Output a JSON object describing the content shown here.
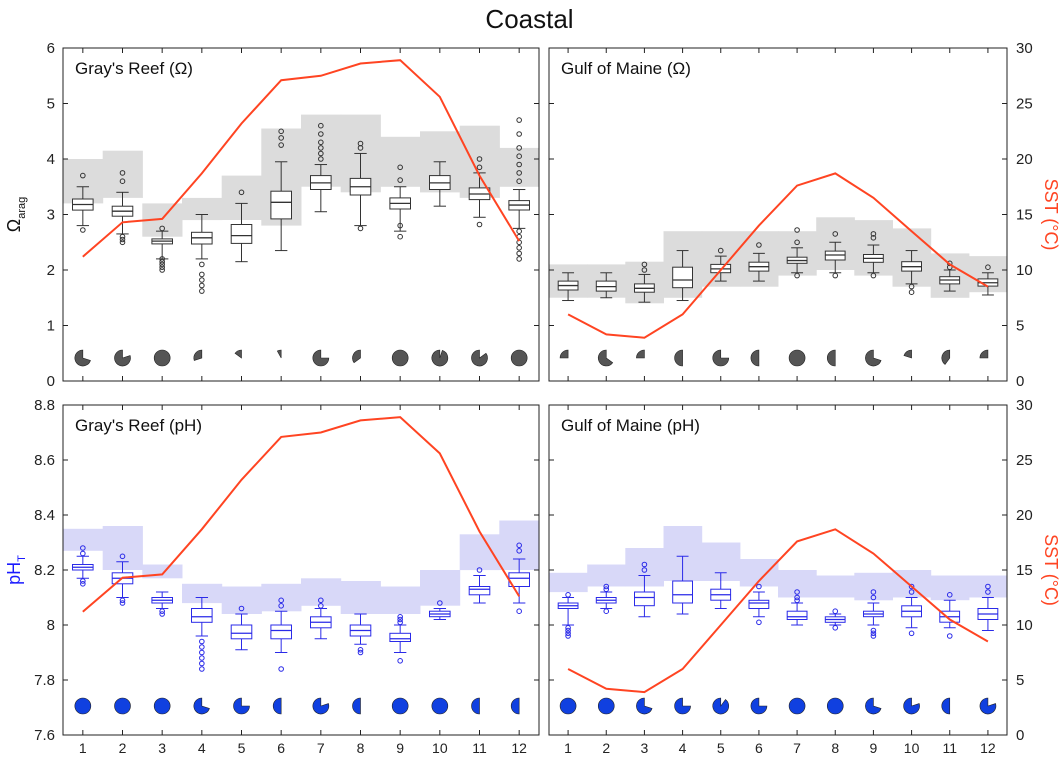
{
  "figure": {
    "title": "Coastal",
    "colors": {
      "sst_line": "#ff4422",
      "omega_box": "#333333",
      "omega_band": "#dcdcdc",
      "ph_box": "#2a2ae8",
      "ph_band": "#d8d8f8",
      "omega_pie": "#555555",
      "ph_pie": "#1040e0",
      "ylabel_omega": "#111111",
      "ylabel_ph": "#1a1aff",
      "ylabel_sst": "#ff4422"
    },
    "left_ylabels": {
      "omega": "Ωarag",
      "ph": "pHT"
    },
    "right_ylabel": "SST (°C)"
  },
  "chart_data": [
    {
      "type": "box",
      "panel": "top-left",
      "title": "Gray's Reef (Ω)",
      "ylabel": "Ωarag",
      "yright_label": "",
      "x": [
        1,
        2,
        3,
        4,
        5,
        6,
        7,
        8,
        9,
        10,
        11,
        12
      ],
      "xticks": [
        1,
        2,
        3,
        4,
        5,
        6,
        7,
        8,
        9,
        10,
        11,
        12
      ],
      "ylim": [
        0,
        6
      ],
      "yticks": [
        0,
        1,
        2,
        3,
        4,
        5,
        6
      ],
      "yright_lim": [
        0,
        30
      ],
      "yright_ticks": [
        0,
        5,
        10,
        15,
        20,
        25,
        30
      ],
      "band": [
        [
          3.2,
          4.0
        ],
        [
          3.3,
          4.15
        ],
        [
          2.6,
          3.2
        ],
        [
          2.9,
          3.3
        ],
        [
          2.9,
          3.7
        ],
        [
          2.8,
          4.55
        ],
        [
          3.5,
          4.8
        ],
        [
          3.4,
          4.8
        ],
        [
          3.5,
          4.4
        ],
        [
          3.4,
          4.5
        ],
        [
          3.3,
          4.6
        ],
        [
          3.5,
          4.2
        ]
      ],
      "boxes": [
        {
          "min": 2.8,
          "q1": 3.08,
          "med": 3.18,
          "q3": 3.28,
          "max": 3.5,
          "outliers": [
            2.72,
            3.7
          ]
        },
        {
          "min": 2.65,
          "q1": 2.97,
          "med": 3.06,
          "q3": 3.15,
          "max": 3.4,
          "outliers": [
            2.5,
            2.55,
            2.6,
            3.6,
            3.75
          ]
        },
        {
          "min": 2.2,
          "q1": 2.47,
          "med": 2.52,
          "q3": 2.56,
          "max": 2.7,
          "outliers": [
            2.0,
            2.05,
            2.1,
            2.15,
            2.2,
            2.75
          ]
        },
        {
          "min": 2.2,
          "q1": 2.47,
          "med": 2.58,
          "q3": 2.68,
          "max": 3.0,
          "outliers": [
            1.62,
            1.72,
            1.82,
            1.92,
            2.1
          ]
        },
        {
          "min": 2.15,
          "q1": 2.48,
          "med": 2.62,
          "q3": 2.82,
          "max": 3.2,
          "outliers": [
            3.4
          ]
        },
        {
          "min": 2.35,
          "q1": 2.92,
          "med": 3.22,
          "q3": 3.42,
          "max": 3.95,
          "outliers": [
            4.25,
            4.38,
            4.5
          ]
        },
        {
          "min": 3.05,
          "q1": 3.45,
          "med": 3.57,
          "q3": 3.7,
          "max": 3.9,
          "outliers": [
            4.0,
            4.1,
            4.2,
            4.3,
            4.45,
            4.6
          ]
        },
        {
          "min": 2.8,
          "q1": 3.35,
          "med": 3.5,
          "q3": 3.65,
          "max": 4.1,
          "outliers": [
            2.75,
            4.2,
            4.28
          ]
        },
        {
          "min": 2.7,
          "q1": 3.1,
          "med": 3.2,
          "q3": 3.3,
          "max": 3.5,
          "outliers": [
            2.6,
            2.8,
            3.62,
            3.85
          ]
        },
        {
          "min": 3.15,
          "q1": 3.45,
          "med": 3.57,
          "q3": 3.7,
          "max": 3.95,
          "outliers": []
        },
        {
          "min": 2.95,
          "q1": 3.27,
          "med": 3.37,
          "q3": 3.48,
          "max": 3.75,
          "outliers": [
            2.82,
            3.85,
            4.0
          ]
        },
        {
          "min": 2.75,
          "q1": 3.08,
          "med": 3.17,
          "q3": 3.25,
          "max": 3.45,
          "outliers": [
            2.2,
            2.3,
            2.4,
            2.5,
            2.6,
            2.7,
            3.6,
            3.75,
            3.9,
            4.05,
            4.2,
            4.45,
            4.7
          ]
        }
      ],
      "sst": [
        11.2,
        14.3,
        14.6,
        18.7,
        23.2,
        27.1,
        27.5,
        28.6,
        28.9,
        25.6,
        18.5,
        12.6
      ],
      "pie_fractions": [
        0.7,
        0.8,
        1.0,
        0.3,
        0.15,
        0.08,
        0.75,
        0.35,
        1.0,
        0.95,
        0.85,
        1.0
      ]
    },
    {
      "type": "box",
      "panel": "top-right",
      "title": "Gulf of Maine (Ω)",
      "ylabel": "",
      "yright_label": "SST (°C)",
      "x": [
        1,
        2,
        3,
        4,
        5,
        6,
        7,
        8,
        9,
        10,
        11,
        12
      ],
      "xticks": [
        1,
        2,
        3,
        4,
        5,
        6,
        7,
        8,
        9,
        10,
        11,
        12
      ],
      "ylim": [
        0,
        6
      ],
      "yticks": [
        0,
        1,
        2,
        3,
        4,
        5,
        6
      ],
      "yright_lim": [
        0,
        30
      ],
      "yright_ticks": [
        0,
        5,
        10,
        15,
        20,
        25,
        30
      ],
      "band": [
        [
          1.5,
          2.1
        ],
        [
          1.5,
          2.1
        ],
        [
          1.4,
          2.15
        ],
        [
          1.5,
          2.7
        ],
        [
          1.7,
          2.7
        ],
        [
          1.7,
          2.7
        ],
        [
          1.9,
          2.7
        ],
        [
          2.0,
          2.95
        ],
        [
          1.9,
          2.9
        ],
        [
          1.7,
          2.75
        ],
        [
          1.5,
          2.3
        ],
        [
          1.6,
          2.25
        ]
      ],
      "boxes": [
        {
          "min": 1.45,
          "q1": 1.64,
          "med": 1.72,
          "q3": 1.8,
          "max": 1.95,
          "outliers": []
        },
        {
          "min": 1.5,
          "q1": 1.62,
          "med": 1.7,
          "q3": 1.8,
          "max": 1.95,
          "outliers": []
        },
        {
          "min": 1.42,
          "q1": 1.6,
          "med": 1.67,
          "q3": 1.75,
          "max": 1.92,
          "outliers": [
            2.0,
            2.1
          ]
        },
        {
          "min": 1.45,
          "q1": 1.68,
          "med": 1.82,
          "q3": 2.05,
          "max": 2.35,
          "outliers": []
        },
        {
          "min": 1.8,
          "q1": 1.95,
          "med": 2.02,
          "q3": 2.1,
          "max": 2.25,
          "outliers": [
            2.35
          ]
        },
        {
          "min": 1.8,
          "q1": 1.98,
          "med": 2.06,
          "q3": 2.14,
          "max": 2.3,
          "outliers": [
            2.45
          ]
        },
        {
          "min": 1.95,
          "q1": 2.12,
          "med": 2.17,
          "q3": 2.23,
          "max": 2.4,
          "outliers": [
            1.9,
            2.5,
            2.72
          ]
        },
        {
          "min": 1.95,
          "q1": 2.18,
          "med": 2.27,
          "q3": 2.34,
          "max": 2.5,
          "outliers": [
            1.9,
            2.65
          ]
        },
        {
          "min": 1.95,
          "q1": 2.14,
          "med": 2.21,
          "q3": 2.28,
          "max": 2.45,
          "outliers": [
            1.9,
            2.58,
            2.65
          ]
        },
        {
          "min": 1.75,
          "q1": 1.98,
          "med": 2.06,
          "q3": 2.15,
          "max": 2.35,
          "outliers": [
            1.6,
            1.7
          ]
        },
        {
          "min": 1.62,
          "q1": 1.75,
          "med": 1.82,
          "q3": 1.88,
          "max": 2.0,
          "outliers": [
            2.05,
            2.12
          ]
        },
        {
          "min": 1.55,
          "q1": 1.71,
          "med": 1.77,
          "q3": 1.84,
          "max": 1.95,
          "outliers": [
            2.05
          ]
        }
      ],
      "sst": [
        6.0,
        4.2,
        3.9,
        6.0,
        10.0,
        14.0,
        17.6,
        18.7,
        16.5,
        13.5,
        10.5,
        8.5
      ],
      "pie_fractions": [
        0.25,
        0.65,
        0.25,
        0.5,
        0.75,
        0.5,
        1.0,
        0.5,
        0.7,
        0.2,
        0.4,
        0.25
      ]
    },
    {
      "type": "box",
      "panel": "bottom-left",
      "title": "Gray's Reef (pH)",
      "ylabel": "pHT",
      "yright_label": "",
      "x": [
        1,
        2,
        3,
        4,
        5,
        6,
        7,
        8,
        9,
        10,
        11,
        12
      ],
      "xticks": [
        1,
        2,
        3,
        4,
        5,
        6,
        7,
        8,
        9,
        10,
        11,
        12
      ],
      "ylim": [
        7.6,
        8.8
      ],
      "yticks": [
        7.6,
        7.8,
        8,
        8.2,
        8.4,
        8.6,
        8.8
      ],
      "yright_lim": [
        0,
        30
      ],
      "yright_ticks": [
        0,
        5,
        10,
        15,
        20,
        25,
        30
      ],
      "band": [
        [
          8.27,
          8.35
        ],
        [
          8.2,
          8.36
        ],
        [
          8.17,
          8.22
        ],
        [
          8.08,
          8.15
        ],
        [
          8.04,
          8.14
        ],
        [
          8.05,
          8.15
        ],
        [
          8.07,
          8.17
        ],
        [
          8.04,
          8.16
        ],
        [
          8.04,
          8.14
        ],
        [
          8.07,
          8.2
        ],
        [
          8.2,
          8.33
        ],
        [
          8.2,
          8.38
        ]
      ],
      "boxes": [
        {
          "min": 8.17,
          "q1": 8.2,
          "med": 8.21,
          "q3": 8.22,
          "max": 8.25,
          "outliers": [
            8.15,
            8.16,
            8.26,
            8.28
          ]
        },
        {
          "min": 8.1,
          "q1": 8.15,
          "med": 8.17,
          "q3": 8.19,
          "max": 8.23,
          "outliers": [
            8.08,
            8.09,
            8.25
          ]
        },
        {
          "min": 8.06,
          "q1": 8.08,
          "med": 8.09,
          "q3": 8.1,
          "max": 8.12,
          "outliers": [
            8.04,
            8.05
          ]
        },
        {
          "min": 7.96,
          "q1": 8.01,
          "med": 8.03,
          "q3": 8.06,
          "max": 8.1,
          "outliers": [
            7.84,
            7.86,
            7.88,
            7.9,
            7.92,
            7.94
          ]
        },
        {
          "min": 7.91,
          "q1": 7.95,
          "med": 7.97,
          "q3": 8.0,
          "max": 8.04,
          "outliers": [
            8.06
          ]
        },
        {
          "min": 7.9,
          "q1": 7.95,
          "med": 7.98,
          "q3": 8.0,
          "max": 8.05,
          "outliers": [
            7.84,
            8.07,
            8.09
          ]
        },
        {
          "min": 7.95,
          "q1": 7.99,
          "med": 8.01,
          "q3": 8.03,
          "max": 8.06,
          "outliers": [
            8.07,
            8.09
          ]
        },
        {
          "min": 7.93,
          "q1": 7.96,
          "med": 7.98,
          "q3": 8.0,
          "max": 8.04,
          "outliers": [
            7.9,
            7.91
          ]
        },
        {
          "min": 7.9,
          "q1": 7.94,
          "med": 7.95,
          "q3": 7.97,
          "max": 8.0,
          "outliers": [
            7.87,
            8.01,
            8.02,
            8.03
          ]
        },
        {
          "min": 8.02,
          "q1": 8.03,
          "med": 8.04,
          "q3": 8.05,
          "max": 8.06,
          "outliers": [
            8.08
          ]
        },
        {
          "min": 8.08,
          "q1": 8.11,
          "med": 8.13,
          "q3": 8.14,
          "max": 8.18,
          "outliers": [
            8.2
          ]
        },
        {
          "min": 8.08,
          "q1": 8.14,
          "med": 8.17,
          "q3": 8.19,
          "max": 8.24,
          "outliers": [
            8.05,
            8.27,
            8.29
          ]
        }
      ],
      "sst": [
        11.2,
        14.3,
        14.6,
        18.7,
        23.2,
        27.1,
        27.5,
        28.6,
        28.9,
        25.6,
        18.5,
        12.6
      ],
      "pie_fractions": [
        1.0,
        1.0,
        1.0,
        0.7,
        0.75,
        0.5,
        0.8,
        0.5,
        1.0,
        1.0,
        0.5,
        0.5
      ]
    },
    {
      "type": "box",
      "panel": "bottom-right",
      "title": "Gulf of Maine (pH)",
      "ylabel": "",
      "yright_label": "SST (°C)",
      "x": [
        1,
        2,
        3,
        4,
        5,
        6,
        7,
        8,
        9,
        10,
        11,
        12
      ],
      "xticks": [
        1,
        2,
        3,
        4,
        5,
        6,
        7,
        8,
        9,
        10,
        11,
        12
      ],
      "ylim": [
        7.6,
        8.8
      ],
      "yticks": [
        7.6,
        7.8,
        8,
        8.2,
        8.4,
        8.6,
        8.8
      ],
      "yright_lim": [
        0,
        30
      ],
      "yright_ticks": [
        0,
        5,
        10,
        15,
        20,
        25,
        30
      ],
      "band": [
        [
          8.12,
          8.19
        ],
        [
          8.14,
          8.22
        ],
        [
          8.14,
          8.28
        ],
        [
          8.16,
          8.36
        ],
        [
          8.16,
          8.3
        ],
        [
          8.14,
          8.24
        ],
        [
          8.1,
          8.2
        ],
        [
          8.1,
          8.18
        ],
        [
          8.09,
          8.19
        ],
        [
          8.1,
          8.2
        ],
        [
          8.09,
          8.18
        ],
        [
          8.1,
          8.18
        ]
      ],
      "boxes": [
        {
          "min": 8.0,
          "q1": 8.06,
          "med": 8.07,
          "q3": 8.08,
          "max": 8.1,
          "outliers": [
            7.96,
            7.97,
            7.98,
            7.99,
            8.11
          ]
        },
        {
          "min": 8.06,
          "q1": 8.08,
          "med": 8.09,
          "q3": 8.1,
          "max": 8.12,
          "outliers": [
            8.05,
            8.13,
            8.14
          ]
        },
        {
          "min": 8.03,
          "q1": 8.07,
          "med": 8.1,
          "q3": 8.12,
          "max": 8.18,
          "outliers": [
            8.2,
            8.22
          ]
        },
        {
          "min": 8.04,
          "q1": 8.08,
          "med": 8.11,
          "q3": 8.16,
          "max": 8.25,
          "outliers": []
        },
        {
          "min": 8.06,
          "q1": 8.09,
          "med": 8.11,
          "q3": 8.13,
          "max": 8.19,
          "outliers": []
        },
        {
          "min": 8.03,
          "q1": 8.06,
          "med": 8.08,
          "q3": 8.09,
          "max": 8.12,
          "outliers": [
            8.01,
            8.14
          ]
        },
        {
          "min": 8.0,
          "q1": 8.02,
          "med": 8.03,
          "q3": 8.05,
          "max": 8.08,
          "outliers": [
            8.09,
            8.1,
            8.12
          ]
        },
        {
          "min": 8.0,
          "q1": 8.01,
          "med": 8.02,
          "q3": 8.03,
          "max": 8.04,
          "outliers": [
            7.99,
            8.05
          ]
        },
        {
          "min": 8.0,
          "q1": 8.03,
          "med": 8.04,
          "q3": 8.05,
          "max": 8.08,
          "outliers": [
            7.96,
            7.97,
            7.98,
            8.1,
            8.12
          ]
        },
        {
          "min": 7.99,
          "q1": 8.03,
          "med": 8.05,
          "q3": 8.07,
          "max": 8.1,
          "outliers": [
            7.97,
            8.12,
            8.14
          ]
        },
        {
          "min": 7.99,
          "q1": 8.01,
          "med": 8.03,
          "q3": 8.05,
          "max": 8.09,
          "outliers": [
            7.96,
            8.11
          ]
        },
        {
          "min": 7.98,
          "q1": 8.02,
          "med": 8.04,
          "q3": 8.06,
          "max": 8.1,
          "outliers": [
            8.12,
            8.14
          ]
        }
      ],
      "sst": [
        6.0,
        4.2,
        3.9,
        6.0,
        10.0,
        14.0,
        17.6,
        18.7,
        16.5,
        13.5,
        10.5,
        8.5
      ],
      "pie_fractions": [
        1.0,
        1.0,
        0.7,
        0.75,
        0.9,
        0.75,
        1.0,
        1.0,
        0.7,
        0.8,
        0.5,
        0.8
      ]
    }
  ]
}
